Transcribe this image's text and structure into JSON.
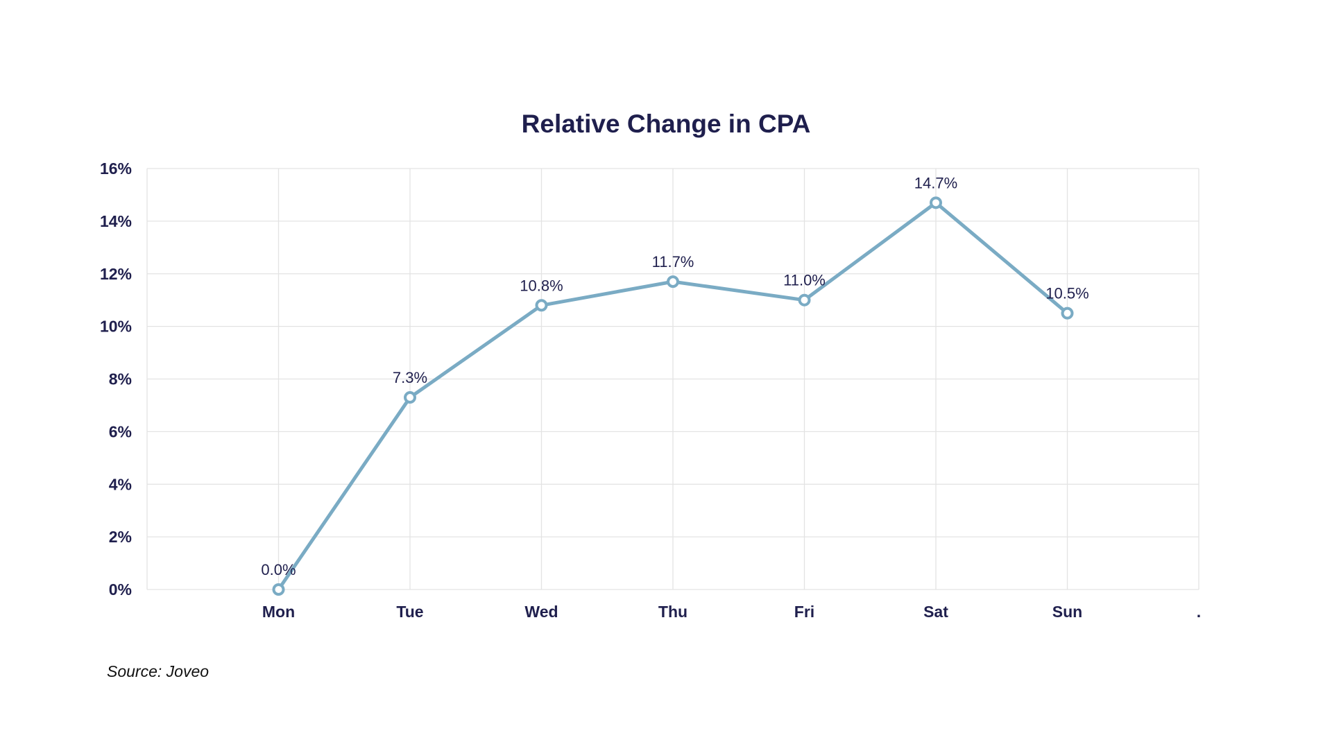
{
  "chart_data": {
    "type": "line",
    "title": "Relative Change in CPA",
    "categories": [
      "Mon",
      "Tue",
      "Wed",
      "Thu",
      "Fri",
      "Sat",
      "Sun"
    ],
    "extra_tick": ".",
    "values": [
      0.0,
      7.3,
      10.8,
      11.7,
      11.0,
      14.7,
      10.5
    ],
    "data_labels": [
      "0.0%",
      "7.3%",
      "10.8%",
      "11.7%",
      "11.0%",
      "14.7%",
      "10.5%"
    ],
    "yticks": [
      0,
      2,
      4,
      6,
      8,
      10,
      12,
      14,
      16
    ],
    "ytick_labels": [
      "0%",
      "2%",
      "4%",
      "6%",
      "8%",
      "10%",
      "12%",
      "14%",
      "16%"
    ],
    "ylim": [
      0,
      16
    ],
    "xlabel": "",
    "ylabel": "",
    "grid": true,
    "line_color": "#7aabc4"
  },
  "source": "Source: Joveo"
}
